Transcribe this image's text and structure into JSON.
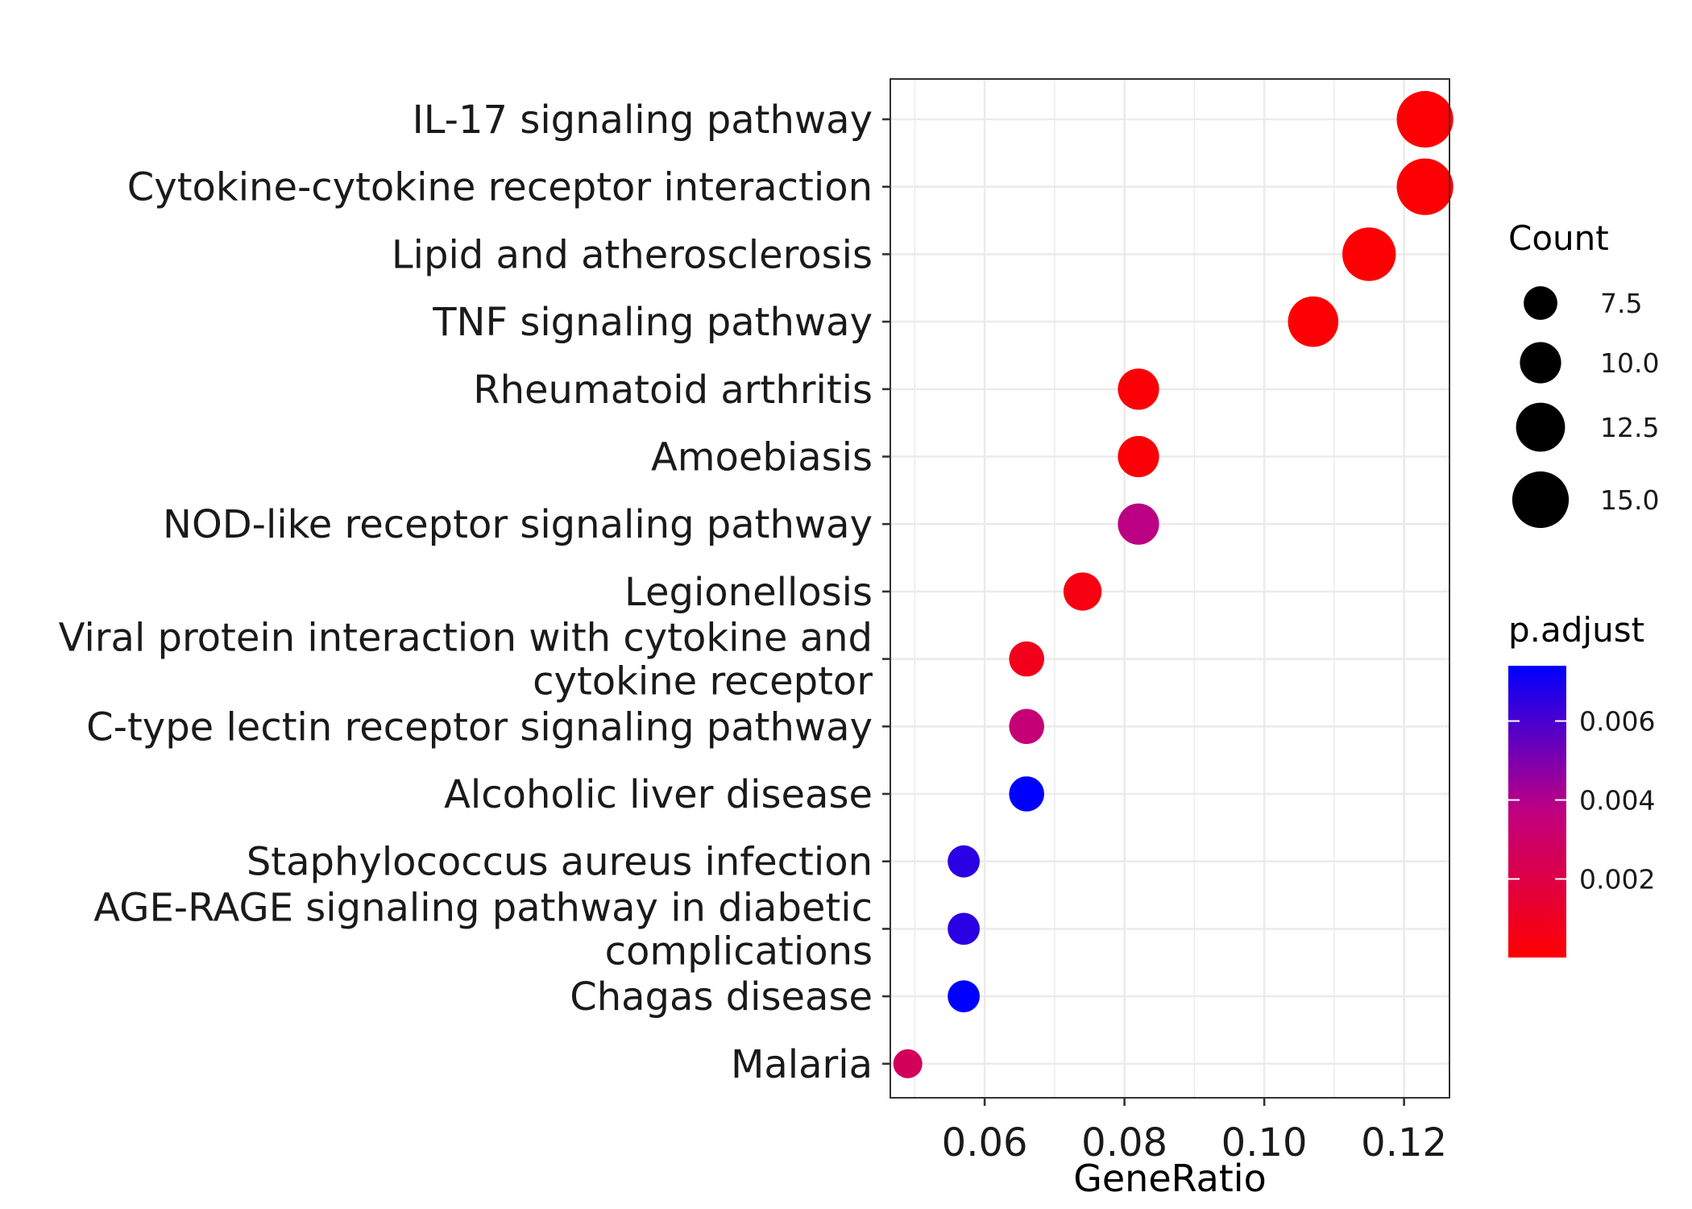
{
  "chart_data": {
    "type": "scatter",
    "xlabel": "GeneRatio",
    "ylabel": "",
    "xlim": [
      0.0465,
      0.1265
    ],
    "x_ticks": [
      0.06,
      0.08,
      0.1,
      0.12
    ],
    "x_tick_labels": [
      "0.06",
      "0.08",
      "0.10",
      "0.12"
    ],
    "grid": true,
    "categories": [
      "IL-17 signaling pathway",
      "Cytokine-cytokine receptor interaction",
      "Lipid and atherosclerosis",
      "TNF signaling pathway",
      "Rheumatoid arthritis",
      "Amoebiasis",
      "NOD-like receptor signaling pathway",
      "Legionellosis",
      "Viral protein interaction with cytokine and\ncytokine receptor",
      "C-type lectin receptor signaling pathway",
      "Alcoholic liver disease",
      "Staphylococcus aureus infection",
      "AGE-RAGE signaling pathway in diabetic\ncomplications",
      "Chagas disease",
      "Malaria"
    ],
    "gene_ratio": [
      0.123,
      0.123,
      0.115,
      0.107,
      0.082,
      0.082,
      0.082,
      0.074,
      0.066,
      0.066,
      0.066,
      0.057,
      0.057,
      0.057,
      0.049
    ],
    "count": [
      15,
      15,
      14,
      13,
      10,
      10,
      10,
      9,
      8,
      8,
      8,
      7,
      7,
      7,
      6
    ],
    "p_adjust": [
      0.0001,
      0.0001,
      0.0001,
      0.0001,
      0.0002,
      0.0002,
      0.0038,
      0.0005,
      0.0008,
      0.0034,
      0.0074,
      0.0066,
      0.0066,
      0.0074,
      0.0026
    ],
    "size_legend": {
      "title": "Count",
      "values": [
        7.5,
        10.0,
        12.5,
        15.0
      ],
      "labels": [
        "7.5",
        "10.0",
        "12.5",
        "15.0"
      ]
    },
    "color_legend": {
      "title": "p.adjust",
      "range": [
        1e-05,
        0.0074
      ],
      "ticks": [
        0.002,
        0.004,
        0.006
      ],
      "tick_labels": [
        "0.002",
        "0.004",
        "0.006"
      ],
      "low_color": "#ff0000",
      "high_color": "#0000ff"
    }
  }
}
